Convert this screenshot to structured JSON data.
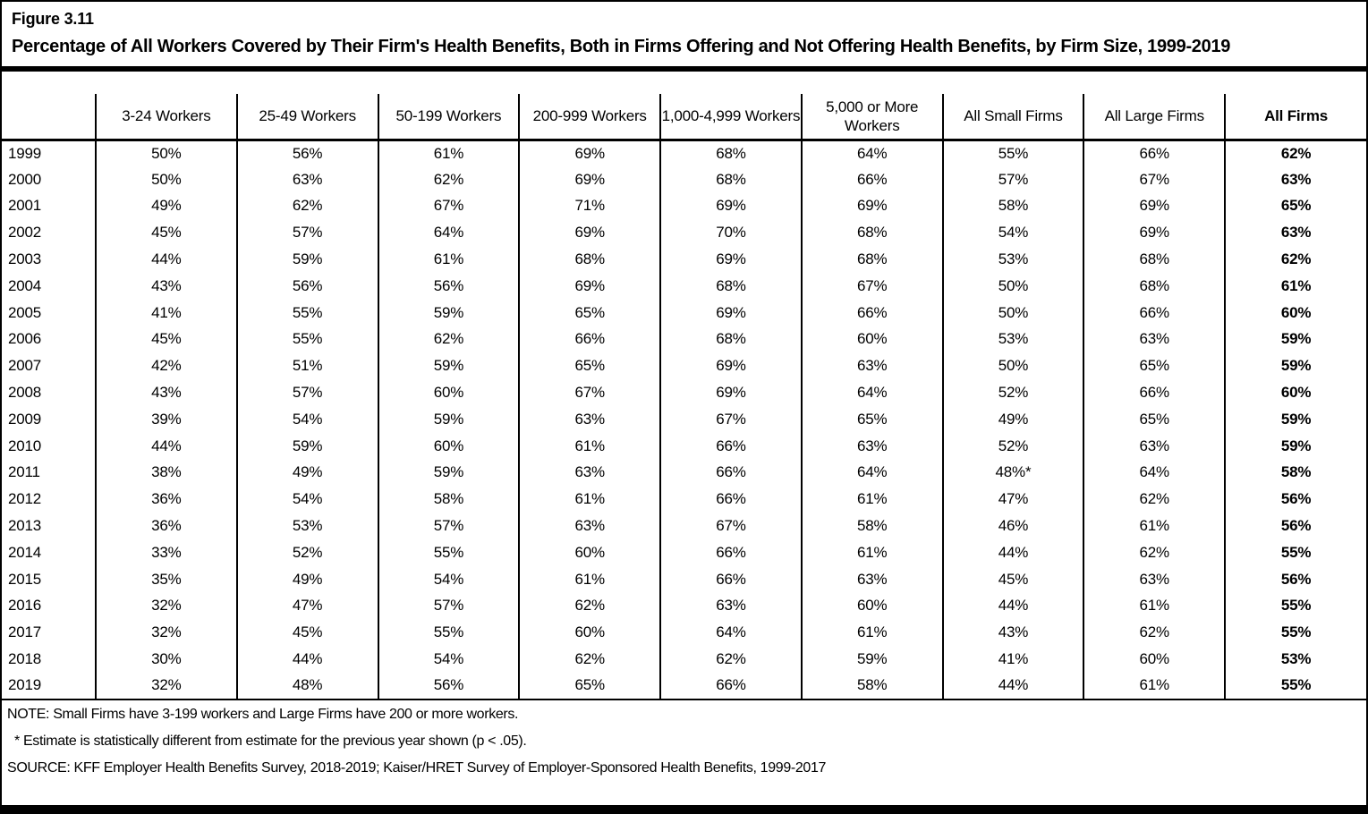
{
  "figure": {
    "label": "Figure 3.11",
    "title": "Percentage of All Workers Covered by Their Firm's Health Benefits, Both in Firms Offering and Not Offering Health Benefits, by Firm Size, 1999-2019"
  },
  "table": {
    "columns": [
      "",
      "3-24 Workers",
      "25-49 Workers",
      "50-199 Workers",
      "200-999 Workers",
      "1,000-4,999 Workers",
      "5,000 or More Workers",
      "All Small Firms",
      "All Large Firms",
      "All Firms"
    ],
    "rows": [
      {
        "year": "1999",
        "values": [
          "50%",
          "56%",
          "61%",
          "69%",
          "68%",
          "64%",
          "55%",
          "66%",
          "62%"
        ]
      },
      {
        "year": "2000",
        "values": [
          "50%",
          "63%",
          "62%",
          "69%",
          "68%",
          "66%",
          "57%",
          "67%",
          "63%"
        ]
      },
      {
        "year": "2001",
        "values": [
          "49%",
          "62%",
          "67%",
          "71%",
          "69%",
          "69%",
          "58%",
          "69%",
          "65%"
        ]
      },
      {
        "year": "2002",
        "values": [
          "45%",
          "57%",
          "64%",
          "69%",
          "70%",
          "68%",
          "54%",
          "69%",
          "63%"
        ]
      },
      {
        "year": "2003",
        "values": [
          "44%",
          "59%",
          "61%",
          "68%",
          "69%",
          "68%",
          "53%",
          "68%",
          "62%"
        ]
      },
      {
        "year": "2004",
        "values": [
          "43%",
          "56%",
          "56%",
          "69%",
          "68%",
          "67%",
          "50%",
          "68%",
          "61%"
        ]
      },
      {
        "year": "2005",
        "values": [
          "41%",
          "55%",
          "59%",
          "65%",
          "69%",
          "66%",
          "50%",
          "66%",
          "60%"
        ]
      },
      {
        "year": "2006",
        "values": [
          "45%",
          "55%",
          "62%",
          "66%",
          "68%",
          "60%",
          "53%",
          "63%",
          "59%"
        ]
      },
      {
        "year": "2007",
        "values": [
          "42%",
          "51%",
          "59%",
          "65%",
          "69%",
          "63%",
          "50%",
          "65%",
          "59%"
        ]
      },
      {
        "year": "2008",
        "values": [
          "43%",
          "57%",
          "60%",
          "67%",
          "69%",
          "64%",
          "52%",
          "66%",
          "60%"
        ]
      },
      {
        "year": "2009",
        "values": [
          "39%",
          "54%",
          "59%",
          "63%",
          "67%",
          "65%",
          "49%",
          "65%",
          "59%"
        ]
      },
      {
        "year": "2010",
        "values": [
          "44%",
          "59%",
          "60%",
          "61%",
          "66%",
          "63%",
          "52%",
          "63%",
          "59%"
        ]
      },
      {
        "year": "2011",
        "values": [
          "38%",
          "49%",
          "59%",
          "63%",
          "66%",
          "64%",
          "48%*",
          "64%",
          "58%"
        ]
      },
      {
        "year": "2012",
        "values": [
          "36%",
          "54%",
          "58%",
          "61%",
          "66%",
          "61%",
          "47%",
          "62%",
          "56%"
        ]
      },
      {
        "year": "2013",
        "values": [
          "36%",
          "53%",
          "57%",
          "63%",
          "67%",
          "58%",
          "46%",
          "61%",
          "56%"
        ]
      },
      {
        "year": "2014",
        "values": [
          "33%",
          "52%",
          "55%",
          "60%",
          "66%",
          "61%",
          "44%",
          "62%",
          "55%"
        ]
      },
      {
        "year": "2015",
        "values": [
          "35%",
          "49%",
          "54%",
          "61%",
          "66%",
          "63%",
          "45%",
          "63%",
          "56%"
        ]
      },
      {
        "year": "2016",
        "values": [
          "32%",
          "47%",
          "57%",
          "62%",
          "63%",
          "60%",
          "44%",
          "61%",
          "55%"
        ]
      },
      {
        "year": "2017",
        "values": [
          "32%",
          "45%",
          "55%",
          "60%",
          "64%",
          "61%",
          "43%",
          "62%",
          "55%"
        ]
      },
      {
        "year": "2018",
        "values": [
          "30%",
          "44%",
          "54%",
          "62%",
          "62%",
          "59%",
          "41%",
          "60%",
          "53%"
        ]
      },
      {
        "year": "2019",
        "values": [
          "32%",
          "48%",
          "56%",
          "65%",
          "66%",
          "58%",
          "44%",
          "61%",
          "55%"
        ]
      }
    ]
  },
  "notes": {
    "note": "NOTE: Small Firms have 3-199 workers and Large Firms have 200 or more workers.",
    "asterisk": "* Estimate is statistically different from estimate for the previous year shown (p < .05).",
    "source": "SOURCE: KFF Employer Health Benefits Survey, 2018-2019; Kaiser/HRET Survey of Employer-Sponsored Health Benefits, 1999-2017"
  },
  "chart_data": {
    "type": "table",
    "title": "Figure 3.11 — Percentage of All Workers Covered by Their Firm's Health Benefits, Both in Firms Offering and Not Offering Health Benefits, by Firm Size, 1999-2019",
    "categories": [
      1999,
      2000,
      2001,
      2002,
      2003,
      2004,
      2005,
      2006,
      2007,
      2008,
      2009,
      2010,
      2011,
      2012,
      2013,
      2014,
      2015,
      2016,
      2017,
      2018,
      2019
    ],
    "unit": "percent",
    "series": [
      {
        "name": "3-24 Workers",
        "values": [
          50,
          50,
          49,
          45,
          44,
          43,
          41,
          45,
          42,
          43,
          39,
          44,
          38,
          36,
          36,
          33,
          35,
          32,
          32,
          30,
          32
        ]
      },
      {
        "name": "25-49 Workers",
        "values": [
          56,
          63,
          62,
          57,
          59,
          56,
          55,
          55,
          51,
          57,
          54,
          59,
          49,
          54,
          53,
          52,
          49,
          47,
          45,
          44,
          48
        ]
      },
      {
        "name": "50-199 Workers",
        "values": [
          61,
          62,
          67,
          64,
          61,
          56,
          59,
          62,
          59,
          60,
          59,
          60,
          59,
          58,
          57,
          55,
          54,
          57,
          55,
          54,
          56
        ]
      },
      {
        "name": "200-999 Workers",
        "values": [
          69,
          69,
          71,
          69,
          68,
          69,
          65,
          66,
          65,
          67,
          63,
          61,
          63,
          61,
          63,
          60,
          61,
          62,
          60,
          62,
          65
        ]
      },
      {
        "name": "1,000-4,999 Workers",
        "values": [
          68,
          68,
          69,
          70,
          69,
          68,
          69,
          68,
          69,
          69,
          67,
          66,
          66,
          66,
          67,
          66,
          66,
          63,
          64,
          62,
          66
        ]
      },
      {
        "name": "5,000 or More Workers",
        "values": [
          64,
          66,
          69,
          68,
          68,
          67,
          66,
          60,
          63,
          64,
          65,
          63,
          64,
          61,
          58,
          61,
          63,
          60,
          61,
          59,
          58
        ]
      },
      {
        "name": "All Small Firms",
        "values": [
          55,
          57,
          58,
          54,
          53,
          50,
          50,
          53,
          50,
          52,
          49,
          52,
          48,
          47,
          46,
          44,
          45,
          44,
          43,
          41,
          44
        ]
      },
      {
        "name": "All Large Firms",
        "values": [
          66,
          67,
          69,
          69,
          68,
          68,
          66,
          63,
          65,
          66,
          65,
          63,
          64,
          62,
          61,
          62,
          63,
          61,
          62,
          60,
          61
        ]
      },
      {
        "name": "All Firms",
        "values": [
          62,
          63,
          65,
          63,
          62,
          61,
          60,
          59,
          59,
          60,
          59,
          59,
          58,
          56,
          56,
          55,
          56,
          55,
          55,
          53,
          55
        ]
      }
    ],
    "annotations": [
      "2011 All Small Firms value (48%) flagged * as statistically different from previous year shown (p < .05)"
    ],
    "legend_position": "none",
    "grid": "column-separators-only"
  }
}
